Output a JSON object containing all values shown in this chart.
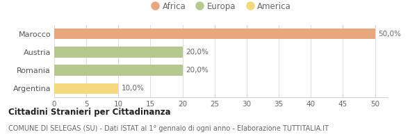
{
  "categories": [
    "Marocco",
    "Austria",
    "Romania",
    "Argentina"
  ],
  "values": [
    50,
    20,
    20,
    10
  ],
  "labels": [
    "50,0%",
    "20,0%",
    "20,0%",
    "10,0%"
  ],
  "colors": [
    "#e8a87c",
    "#b5c98e",
    "#b5c98e",
    "#f5d97e"
  ],
  "legend": [
    {
      "label": "Africa",
      "color": "#e8a87c"
    },
    {
      "label": "Europa",
      "color": "#b5c98e"
    },
    {
      "label": "America",
      "color": "#f5d97e"
    }
  ],
  "xlim": [
    0,
    52
  ],
  "xticks": [
    0,
    5,
    10,
    15,
    20,
    25,
    30,
    35,
    40,
    45,
    50
  ],
  "title_bold": "Cittadini Stranieri per Cittadinanza",
  "subtitle": "COMUNE DI SELEGAS (SU) - Dati ISTAT al 1° gennaio di ogni anno - Elaborazione TUTTITALIA.IT",
  "background_color": "#ffffff",
  "bar_height": 0.6,
  "label_fontsize": 7.5,
  "tick_fontsize": 7.5,
  "ytick_fontsize": 8,
  "legend_fontsize": 8.5,
  "title_fontsize": 8.5,
  "subtitle_fontsize": 7
}
